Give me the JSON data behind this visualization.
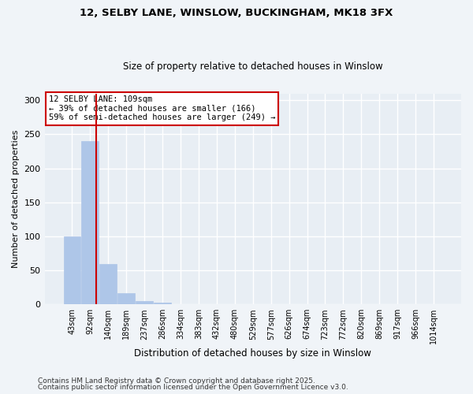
{
  "title1": "12, SELBY LANE, WINSLOW, BUCKINGHAM, MK18 3FX",
  "title2": "Size of property relative to detached houses in Winslow",
  "xlabel": "Distribution of detached houses by size in Winslow",
  "ylabel": "Number of detached properties",
  "bin_labels": [
    "43sqm",
    "92sqm",
    "140sqm",
    "189sqm",
    "237sqm",
    "286sqm",
    "334sqm",
    "383sqm",
    "432sqm",
    "480sqm",
    "529sqm",
    "577sqm",
    "626sqm",
    "674sqm",
    "723sqm",
    "772sqm",
    "820sqm",
    "869sqm",
    "917sqm",
    "966sqm",
    "1014sqm"
  ],
  "bar_values": [
    100,
    240,
    60,
    17,
    5,
    3,
    0,
    0,
    0,
    0,
    0,
    0,
    0,
    0,
    0,
    0,
    0,
    0,
    0,
    0,
    0
  ],
  "bar_color": "#aec6e8",
  "bar_edgecolor": "#aec6e8",
  "vline_x": 1.35,
  "vline_color": "#cc0000",
  "annotation_text": "12 SELBY LANE: 109sqm\n← 39% of detached houses are smaller (166)\n59% of semi-detached houses are larger (249) →",
  "annotation_box_color": "#cc0000",
  "ylim": [
    0,
    310
  ],
  "yticks": [
    0,
    50,
    100,
    150,
    200,
    250,
    300
  ],
  "bg_color": "#e8eef4",
  "grid_color": "#ffffff",
  "fig_bg_color": "#f0f4f8",
  "footer1": "Contains HM Land Registry data © Crown copyright and database right 2025.",
  "footer2": "Contains public sector information licensed under the Open Government Licence v3.0."
}
